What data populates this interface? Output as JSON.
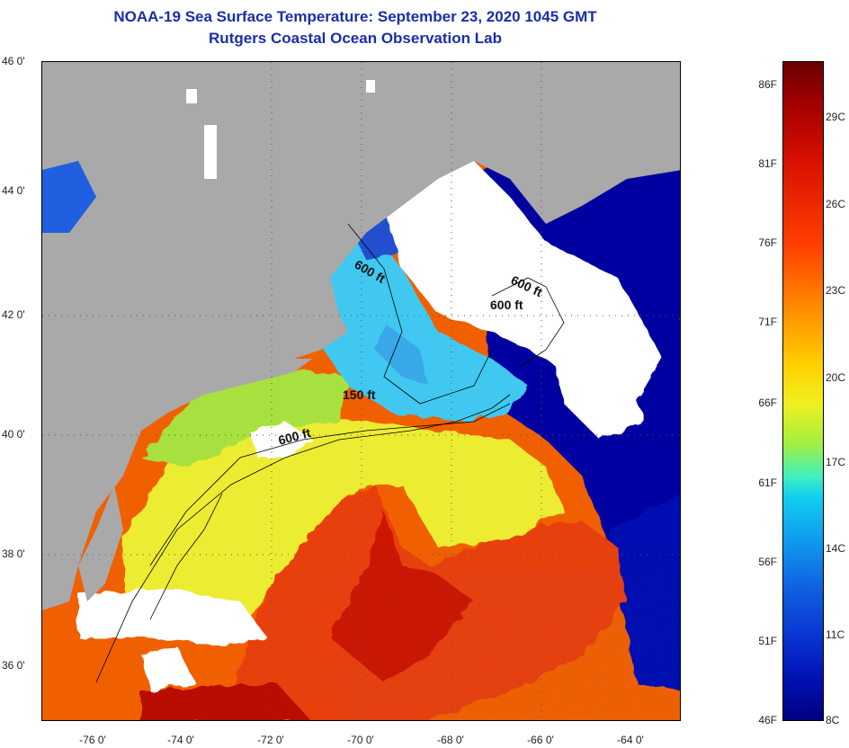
{
  "title": {
    "line1": "NOAA-19 Sea Surface Temperature:  September 23, 2020 1045 GMT",
    "line2": "Rutgers Coastal Ocean Observation Lab"
  },
  "axes": {
    "longitudes": [
      "-76 0'",
      "-74 0'",
      "-72 0'",
      "-70 0'",
      "-68 0'",
      "-66 0'",
      "-64 0'"
    ],
    "latitudes": [
      "46 0'",
      "44 0'",
      "42 0'",
      "40 0'",
      "38 0'",
      "36 0'"
    ]
  },
  "depth_labels": [
    "600 ft",
    "600 ft",
    "600 ft",
    "150 ft",
    "600 ft"
  ],
  "colorbar": {
    "fahrenheit": [
      "86F",
      "81F",
      "76F",
      "71F",
      "66F",
      "61F",
      "56F",
      "51F",
      "46F"
    ],
    "celsius": [
      "29C",
      "26C",
      "23C",
      "20C",
      "17C",
      "14C",
      "11C",
      "8C"
    ]
  },
  "colors": {
    "land": "#a9a9a9",
    "cloud": "#ffffff",
    "cold": "#00008b",
    "warm": "#e02000",
    "title": "#1a2ea8"
  }
}
